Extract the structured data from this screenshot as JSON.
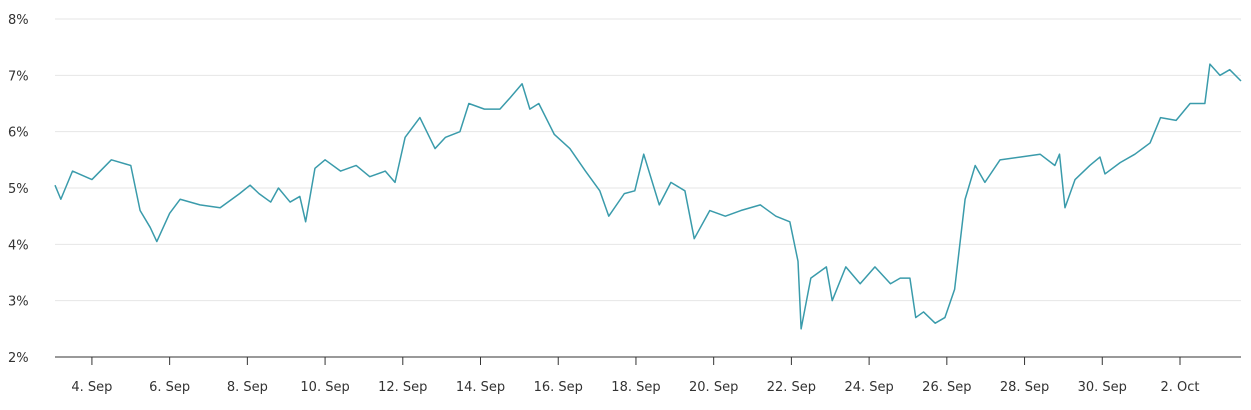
{
  "chart_data": {
    "type": "line",
    "x": [
      3.05,
      3.2,
      3.5,
      4.0,
      4.5,
      5.0,
      5.24,
      5.5,
      5.67,
      6.0,
      6.27,
      6.78,
      7.3,
      7.8,
      8.07,
      8.3,
      8.6,
      8.8,
      9.1,
      9.35,
      9.5,
      9.74,
      10.0,
      10.4,
      10.8,
      11.15,
      11.55,
      11.8,
      12.06,
      12.44,
      12.83,
      13.1,
      13.47,
      13.7,
      14.1,
      14.5,
      14.76,
      15.07,
      15.27,
      15.5,
      15.9,
      16.3,
      16.7,
      17.07,
      17.3,
      17.7,
      17.97,
      18.2,
      18.6,
      18.9,
      19.26,
      19.5,
      19.9,
      20.3,
      20.7,
      21.2,
      21.6,
      21.96,
      22.17,
      22.25,
      22.5,
      22.9,
      23.05,
      23.4,
      23.77,
      24.15,
      24.55,
      24.8,
      25.05,
      25.2,
      25.4,
      25.7,
      25.95,
      26.2,
      26.47,
      26.73,
      26.98,
      27.37,
      27.9,
      28.4,
      28.78,
      28.9,
      29.04,
      29.3,
      29.68,
      29.94,
      30.07,
      30.46,
      30.84,
      31.23,
      31.5,
      31.9,
      32.26,
      32.64,
      32.77,
      33.03,
      33.28,
      33.57
    ],
    "series": [
      {
        "color": "#3a9bab",
        "values": [
          5.05,
          4.8,
          5.3,
          5.15,
          5.5,
          5.4,
          4.6,
          4.3,
          4.05,
          4.55,
          4.8,
          4.7,
          4.65,
          4.9,
          5.05,
          4.9,
          4.75,
          5.0,
          4.75,
          4.85,
          4.4,
          5.35,
          5.5,
          5.3,
          5.4,
          5.2,
          5.3,
          5.1,
          5.9,
          6.25,
          5.7,
          5.9,
          6.0,
          6.5,
          6.4,
          6.4,
          6.6,
          6.85,
          6.4,
          6.5,
          5.95,
          5.7,
          5.3,
          4.95,
          4.5,
          4.9,
          4.95,
          5.6,
          4.7,
          5.1,
          4.95,
          4.1,
          4.6,
          4.5,
          4.6,
          4.7,
          4.5,
          4.4,
          3.7,
          2.5,
          3.4,
          3.6,
          3.0,
          3.6,
          3.3,
          3.6,
          3.3,
          3.4,
          3.4,
          2.7,
          2.8,
          2.6,
          2.7,
          3.2,
          4.8,
          5.4,
          5.1,
          5.5,
          5.55,
          5.6,
          5.4,
          5.6,
          4.65,
          5.15,
          5.4,
          5.55,
          5.25,
          5.45,
          5.6,
          5.8,
          6.25,
          6.2,
          6.5,
          6.5,
          7.2,
          7.0,
          7.1,
          6.9
        ]
      }
    ],
    "xlim": [
      3.05,
      33.57
    ],
    "xticks": [
      {
        "value": 4,
        "label": "4. Sep"
      },
      {
        "value": 6,
        "label": "6. Sep"
      },
      {
        "value": 8,
        "label": "8. Sep"
      },
      {
        "value": 10,
        "label": "10. Sep"
      },
      {
        "value": 12,
        "label": "12. Sep"
      },
      {
        "value": 14,
        "label": "14. Sep"
      },
      {
        "value": 16,
        "label": "16. Sep"
      },
      {
        "value": 18,
        "label": "18. Sep"
      },
      {
        "value": 20,
        "label": "20. Sep"
      },
      {
        "value": 22,
        "label": "22. Sep"
      },
      {
        "value": 24,
        "label": "24. Sep"
      },
      {
        "value": 26,
        "label": "26. Sep"
      },
      {
        "value": 28,
        "label": "28. Sep"
      },
      {
        "value": 30,
        "label": "30. Sep"
      },
      {
        "value": 32,
        "label": "2. Oct"
      }
    ],
    "ylim": [
      2,
      8
    ],
    "yticks": [
      {
        "value": 2,
        "label": "2%"
      },
      {
        "value": 3,
        "label": "3%"
      },
      {
        "value": 4,
        "label": "4%"
      },
      {
        "value": 5,
        "label": "5%"
      },
      {
        "value": 6,
        "label": "6%"
      },
      {
        "value": 7,
        "label": "7%"
      },
      {
        "value": 8,
        "label": "8%"
      }
    ],
    "grid": true
  }
}
